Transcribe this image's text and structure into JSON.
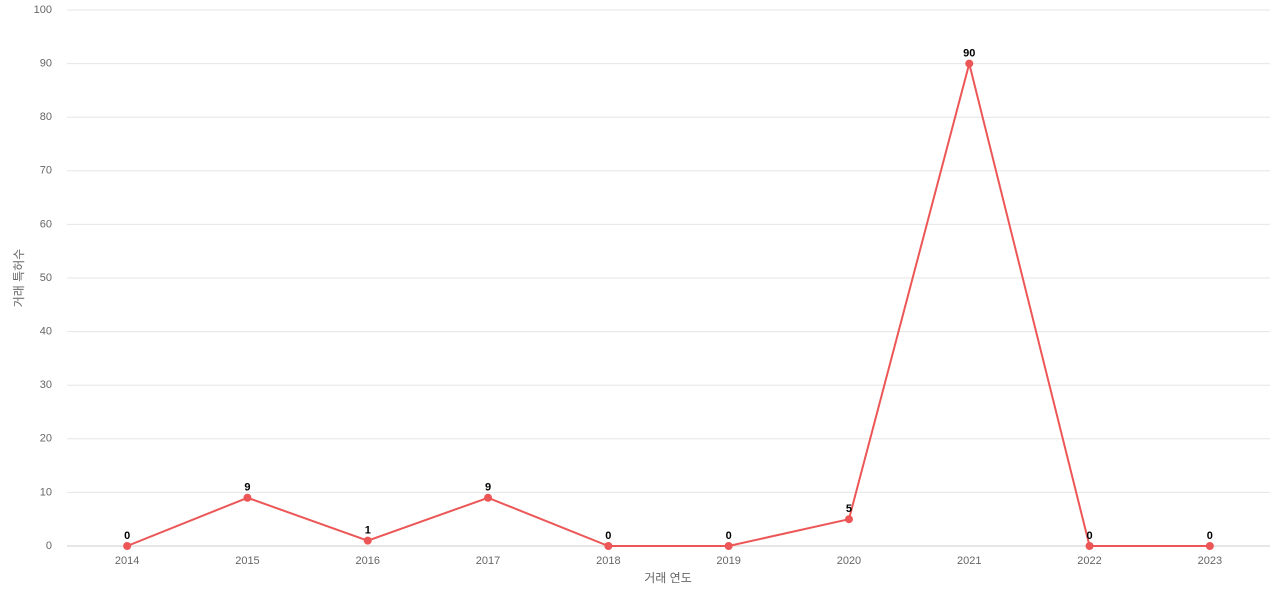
{
  "chart_data": {
    "type": "line",
    "x_label": "거래 연도",
    "y_label": "거래 특허수",
    "categories": [
      "2014",
      "2015",
      "2016",
      "2017",
      "2018",
      "2019",
      "2020",
      "2021",
      "2022",
      "2023"
    ],
    "series": [
      {
        "name": "거래 특허수",
        "color": "#ec5656",
        "values": [
          0,
          9,
          1,
          9,
          0,
          0,
          5,
          90,
          0,
          0
        ]
      }
    ],
    "ylim": [
      0,
      100
    ],
    "yticks": [
      0,
      10,
      20,
      30,
      40,
      50,
      60,
      70,
      80,
      90,
      100
    ],
    "grid": true
  }
}
